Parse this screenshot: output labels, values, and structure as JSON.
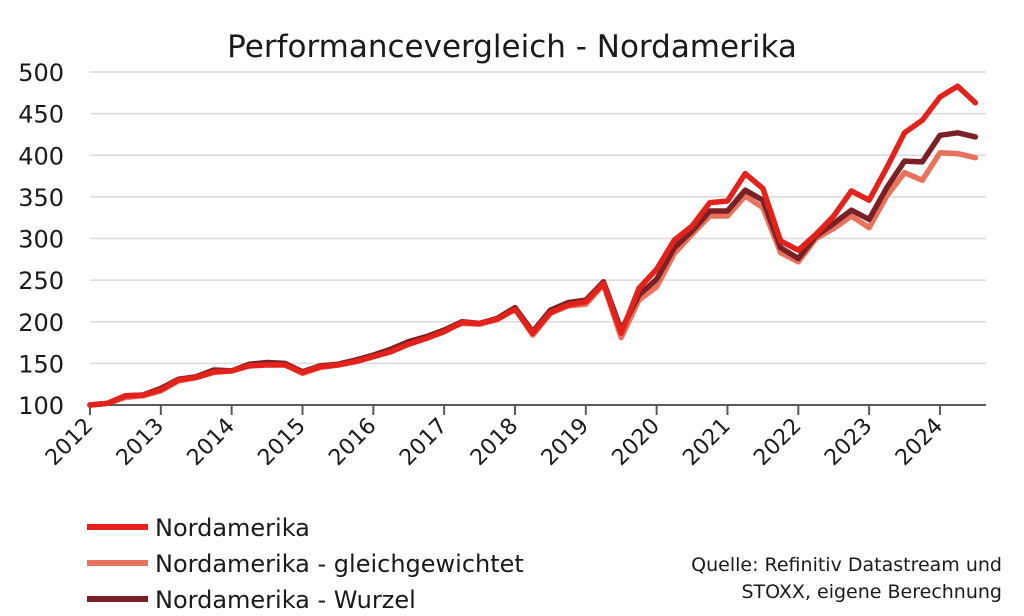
{
  "chart_data": {
    "type": "line",
    "title": "Performancevergleich - Nordamerika",
    "xlabel": "",
    "ylabel": "",
    "ylim": [
      100,
      500
    ],
    "yticks": [
      100,
      150,
      200,
      250,
      300,
      350,
      400,
      450,
      500
    ],
    "xlim": [
      2012,
      2024.65
    ],
    "xticks": [
      "2012",
      "2013",
      "2014",
      "2015",
      "2016",
      "2017",
      "2018",
      "2019",
      "2020",
      "2021",
      "2022",
      "2023",
      "2024"
    ],
    "grid": true,
    "legend": "bottom-left",
    "x": [
      2012.0,
      2012.25,
      2012.5,
      2012.75,
      2013.0,
      2013.25,
      2013.5,
      2013.75,
      2014.0,
      2014.25,
      2014.5,
      2014.75,
      2015.0,
      2015.25,
      2015.5,
      2015.75,
      2016.0,
      2016.25,
      2016.5,
      2016.75,
      2017.0,
      2017.25,
      2017.5,
      2017.75,
      2018.0,
      2018.25,
      2018.5,
      2018.75,
      2019.0,
      2019.25,
      2019.5,
      2019.75,
      2020.0,
      2020.25,
      2020.5,
      2020.75,
      2021.0,
      2021.25,
      2021.5,
      2021.75,
      2022.0,
      2022.25,
      2022.5,
      2022.75,
      2023.0,
      2023.25,
      2023.5,
      2023.75,
      2024.0,
      2024.25,
      2024.5
    ],
    "series": [
      {
        "name": "Nordamerika",
        "color": "#e3231b",
        "values": [
          100,
          102,
          111,
          112,
          118,
          130,
          133,
          140,
          141,
          147,
          148,
          148,
          139,
          146,
          148,
          152,
          158,
          164,
          173,
          180,
          188,
          199,
          198,
          203,
          215,
          186,
          211,
          220,
          224,
          246,
          186,
          240,
          263,
          298,
          315,
          343,
          345,
          378,
          360,
          297,
          286,
          305,
          327,
          357,
          346,
          385,
          427,
          442,
          470,
          483,
          463
        ]
      },
      {
        "name": "Nordamerika - gleichgewichtet",
        "color": "#e8735c",
        "values": [
          100,
          102,
          109,
          111,
          117,
          129,
          133,
          139,
          141,
          148,
          150,
          149,
          138,
          145,
          148,
          153,
          159,
          167,
          176,
          182,
          190,
          198,
          197,
          203,
          216,
          184,
          210,
          219,
          221,
          245,
          181,
          226,
          242,
          282,
          305,
          327,
          327,
          351,
          337,
          283,
          272,
          300,
          312,
          327,
          313,
          351,
          379,
          370,
          403,
          402,
          397
        ]
      },
      {
        "name": "Nordamerika - Wurzel",
        "color": "#7b2125",
        "values": [
          100,
          102,
          111,
          112,
          120,
          131,
          134,
          142,
          141,
          149,
          151,
          150,
          140,
          147,
          149,
          154,
          160,
          167,
          176,
          182,
          190,
          200,
          198,
          204,
          217,
          188,
          214,
          223,
          226,
          248,
          190,
          232,
          251,
          289,
          309,
          333,
          333,
          358,
          346,
          289,
          276,
          303,
          318,
          334,
          323,
          361,
          393,
          392,
          424,
          427,
          422
        ]
      }
    ]
  },
  "source": {
    "line1": "Quelle: Refinitiv Datastream und",
    "line2": "STOXX, eigene Berechnung"
  }
}
